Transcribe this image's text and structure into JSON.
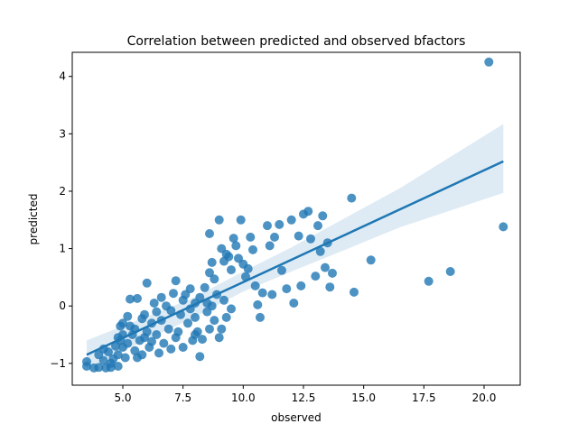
{
  "chart_data": {
    "type": "scatter",
    "title": "Correlation between predicted and observed bfactors",
    "xlabel": "observed",
    "ylabel": "predicted",
    "xlim": [
      2.9,
      21.5
    ],
    "ylim": [
      -1.38,
      4.42
    ],
    "xticks": [
      5.0,
      7.5,
      10.0,
      12.5,
      15.0,
      17.5,
      20.0
    ],
    "xtick_labels": [
      "5.0",
      "7.5",
      "10.0",
      "12.5",
      "15.0",
      "17.5",
      "20.0"
    ],
    "yticks": [
      -1,
      0,
      1,
      2,
      3,
      4
    ],
    "ytick_labels": [
      "−1",
      "0",
      "1",
      "2",
      "3",
      "4"
    ],
    "grid": false,
    "colors": {
      "points": "#1f77b4",
      "line": "#1f77b4",
      "band": "#1f77b4"
    },
    "regression": {
      "x": [
        3.5,
        20.8
      ],
      "y": [
        -0.85,
        2.52
      ],
      "ci_band": {
        "x": [
          3.5,
          7.8,
          10.0,
          12.0,
          14.0,
          16.5,
          20.8
        ],
        "upper": [
          -0.6,
          0.12,
          0.6,
          1.02,
          1.48,
          2.05,
          3.17
        ],
        "lower": [
          -1.08,
          -0.23,
          0.25,
          0.6,
          0.94,
          1.37,
          1.97
        ]
      }
    },
    "points": [
      [
        3.5,
        -0.97
      ],
      [
        3.5,
        -1.05
      ],
      [
        3.8,
        -1.08
      ],
      [
        4.0,
        -0.85
      ],
      [
        4.0,
        -1.07
      ],
      [
        4.2,
        -0.75
      ],
      [
        4.2,
        -0.95
      ],
      [
        4.3,
        -1.08
      ],
      [
        4.4,
        -0.8
      ],
      [
        4.5,
        -1.0
      ],
      [
        4.5,
        -1.07
      ],
      [
        4.6,
        -0.92
      ],
      [
        4.7,
        -0.7
      ],
      [
        4.8,
        -0.85
      ],
      [
        4.8,
        -1.05
      ],
      [
        4.8,
        -0.55
      ],
      [
        4.9,
        -0.35
      ],
      [
        4.9,
        -0.6
      ],
      [
        5.0,
        -0.3
      ],
      [
        5.0,
        -0.5
      ],
      [
        5.0,
        -0.72
      ],
      [
        5.1,
        -0.9
      ],
      [
        5.2,
        -0.65
      ],
      [
        5.2,
        -0.18
      ],
      [
        5.3,
        -0.35
      ],
      [
        5.3,
        0.12
      ],
      [
        5.4,
        -0.5
      ],
      [
        5.5,
        -0.78
      ],
      [
        5.5,
        -0.4
      ],
      [
        5.6,
        0.13
      ],
      [
        5.6,
        -0.9
      ],
      [
        5.7,
        -0.6
      ],
      [
        5.8,
        -0.85
      ],
      [
        5.8,
        -0.22
      ],
      [
        5.9,
        -0.55
      ],
      [
        5.9,
        -0.15
      ],
      [
        6.0,
        0.4
      ],
      [
        6.0,
        -0.45
      ],
      [
        6.1,
        -0.72
      ],
      [
        6.2,
        -0.62
      ],
      [
        6.2,
        -0.3
      ],
      [
        6.3,
        0.05
      ],
      [
        6.4,
        -0.1
      ],
      [
        6.4,
        -0.5
      ],
      [
        6.5,
        -0.82
      ],
      [
        6.6,
        -0.25
      ],
      [
        6.6,
        0.15
      ],
      [
        6.7,
        -0.65
      ],
      [
        6.8,
        0.0
      ],
      [
        6.9,
        -0.4
      ],
      [
        7.0,
        -0.08
      ],
      [
        7.0,
        -0.75
      ],
      [
        7.1,
        0.22
      ],
      [
        7.2,
        0.44
      ],
      [
        7.2,
        -0.55
      ],
      [
        7.3,
        -0.45
      ],
      [
        7.4,
        -0.15
      ],
      [
        7.5,
        0.1
      ],
      [
        7.5,
        -0.72
      ],
      [
        7.6,
        0.2
      ],
      [
        7.7,
        -0.3
      ],
      [
        7.8,
        -0.05
      ],
      [
        7.8,
        0.3
      ],
      [
        7.9,
        -0.6
      ],
      [
        8.0,
        -0.2
      ],
      [
        8.0,
        0.05
      ],
      [
        8.1,
        -0.45
      ],
      [
        8.2,
        0.15
      ],
      [
        8.3,
        -0.58
      ],
      [
        8.4,
        0.32
      ],
      [
        8.5,
        -0.1
      ],
      [
        8.6,
        -0.4
      ],
      [
        8.7,
        0.0
      ],
      [
        8.8,
        -0.25
      ],
      [
        8.9,
        0.2
      ],
      [
        9.0,
        -0.55
      ],
      [
        9.1,
        -0.4
      ],
      [
        9.2,
        0.1
      ],
      [
        9.3,
        -0.2
      ],
      [
        9.5,
        -0.05
      ],
      [
        8.2,
        -0.88
      ],
      [
        8.0,
        -0.5
      ],
      [
        8.5,
        0.05
      ],
      [
        8.6,
        0.58
      ],
      [
        8.7,
        0.76
      ],
      [
        8.8,
        0.47
      ],
      [
        8.6,
        1.26
      ],
      [
        9.0,
        1.5
      ],
      [
        9.1,
        1.0
      ],
      [
        9.2,
        0.78
      ],
      [
        9.3,
        0.9
      ],
      [
        9.4,
        0.86
      ],
      [
        9.5,
        0.63
      ],
      [
        9.6,
        1.18
      ],
      [
        9.7,
        1.05
      ],
      [
        9.8,
        0.83
      ],
      [
        9.9,
        1.5
      ],
      [
        10.0,
        0.73
      ],
      [
        10.1,
        0.51
      ],
      [
        10.2,
        0.65
      ],
      [
        10.3,
        1.2
      ],
      [
        10.4,
        0.98
      ],
      [
        10.5,
        0.35
      ],
      [
        10.6,
        0.02
      ],
      [
        10.7,
        -0.2
      ],
      [
        10.8,
        0.23
      ],
      [
        11.0,
        1.4
      ],
      [
        11.1,
        1.05
      ],
      [
        11.2,
        0.2
      ],
      [
        11.3,
        1.2
      ],
      [
        11.5,
        1.42
      ],
      [
        11.6,
        0.62
      ],
      [
        11.8,
        0.3
      ],
      [
        12.0,
        1.5
      ],
      [
        12.1,
        0.05
      ],
      [
        12.3,
        1.22
      ],
      [
        12.4,
        0.35
      ],
      [
        12.5,
        1.6
      ],
      [
        12.7,
        1.65
      ],
      [
        12.8,
        1.17
      ],
      [
        13.0,
        0.52
      ],
      [
        13.1,
        1.4
      ],
      [
        13.2,
        0.95
      ],
      [
        13.3,
        1.57
      ],
      [
        13.4,
        0.67
      ],
      [
        13.5,
        1.1
      ],
      [
        13.6,
        0.33
      ],
      [
        13.7,
        0.57
      ],
      [
        14.5,
        1.88
      ],
      [
        14.6,
        0.24
      ],
      [
        15.3,
        0.8
      ],
      [
        17.7,
        0.43
      ],
      [
        18.6,
        0.6
      ],
      [
        20.2,
        4.25
      ],
      [
        20.8,
        1.38
      ]
    ]
  }
}
